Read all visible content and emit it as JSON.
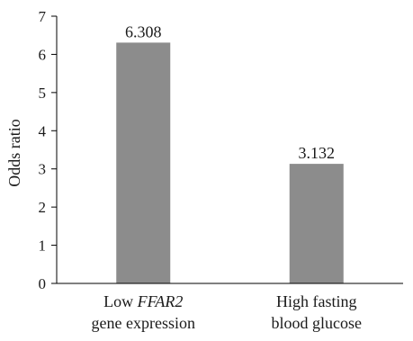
{
  "chart_data": {
    "type": "bar",
    "categories": [
      [
        "Low ",
        "FFAR2",
        "gene expression"
      ],
      [
        "High fasting",
        "",
        "blood glucose"
      ]
    ],
    "category_labels": [
      "Low FFAR2 gene expression",
      "High fasting blood glucose"
    ],
    "values": [
      6.308,
      3.132
    ],
    "value_labels": [
      "6.308",
      "3.132"
    ],
    "ylabel": "Odds ratio",
    "ylim": [
      0,
      7
    ],
    "yticks": [
      0,
      1,
      2,
      3,
      4,
      5,
      6,
      7
    ],
    "ytick_labels": [
      "0",
      "1",
      "2",
      "3",
      "4",
      "5",
      "6",
      "7"
    ],
    "bar_color": "#8c8c8c",
    "axis_color": "#000000",
    "grid": false,
    "legend": "none"
  }
}
